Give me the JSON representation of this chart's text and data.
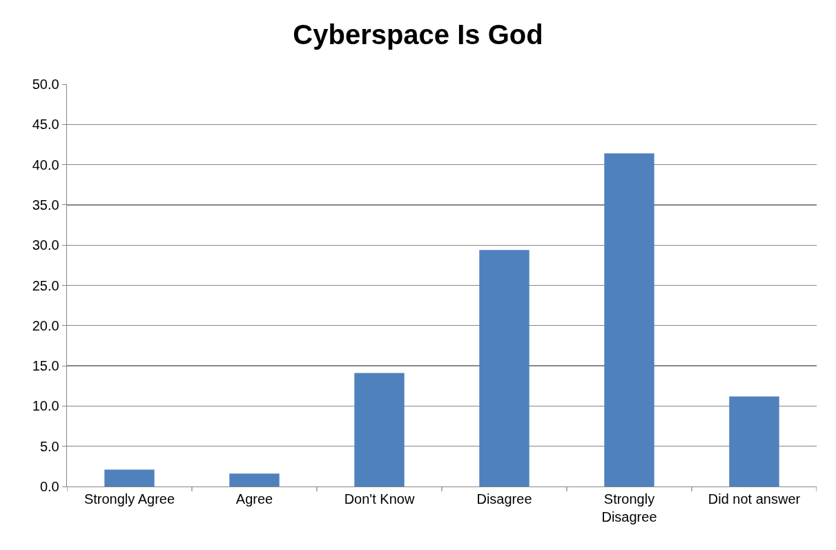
{
  "chart_data": {
    "type": "bar",
    "title": "Cyberspace Is God",
    "categories": [
      "Strongly Agree",
      "Agree",
      "Don't Know",
      "Disagree",
      "Strongly Disagree",
      "Did not answer"
    ],
    "values": [
      2.1,
      1.6,
      14.1,
      29.4,
      41.4,
      11.2
    ],
    "color": "#4f81bd",
    "ylim": [
      0,
      50
    ],
    "yticks": [
      {
        "value": 0,
        "label": "0.0"
      },
      {
        "value": 5,
        "label": "5.0"
      },
      {
        "value": 10,
        "label": "10.0"
      },
      {
        "value": 15,
        "label": "15.0"
      },
      {
        "value": 20,
        "label": "20.0"
      },
      {
        "value": 25,
        "label": "25.0"
      },
      {
        "value": 30,
        "label": "30.0"
      },
      {
        "value": 35,
        "label": "35.0"
      },
      {
        "value": 40,
        "label": "40.0"
      },
      {
        "value": 45,
        "label": "45.0"
      },
      {
        "value": 50,
        "label": "50.0"
      }
    ],
    "grid": "y",
    "legend": false
  }
}
